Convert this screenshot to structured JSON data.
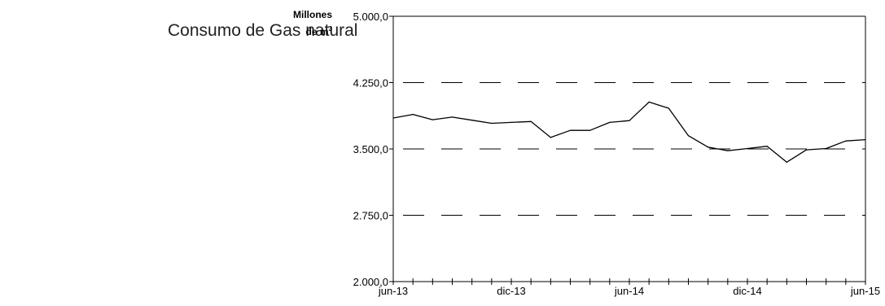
{
  "title": "Consumo de Gas natural",
  "chart_data": {
    "type": "line",
    "ylabel_line1": "Millones",
    "ylabel_line2": "de m",
    "ylabel_sup": "3",
    "ylim": [
      2000,
      5000
    ],
    "yticks": [
      2000,
      2750,
      3500,
      4250,
      5000
    ],
    "ytick_labels": [
      "2.000,0",
      "2.750,0",
      "3.500,0",
      "4.250,0",
      "5.000,0"
    ],
    "xtick_labels": [
      "jun-13",
      "dic-13",
      "jun-14",
      "dic-14",
      "jun-15"
    ],
    "xtick_label_indices": [
      0,
      6,
      12,
      18,
      24
    ],
    "grid": "dashed horizontal",
    "x": [
      "jun-13",
      "jul-13",
      "ago-13",
      "sep-13",
      "oct-13",
      "nov-13",
      "dic-13",
      "ene-14",
      "feb-14",
      "mar-14",
      "abr-14",
      "may-14",
      "jun-14",
      "jul-14",
      "ago-14",
      "sep-14",
      "oct-14",
      "nov-14",
      "dic-14",
      "ene-15",
      "feb-15",
      "mar-15",
      "abr-15",
      "may-15",
      "jun-15"
    ],
    "series": [
      {
        "values": [
          3850,
          3890,
          3830,
          3860,
          3825,
          3790,
          3800,
          3810,
          3630,
          3710,
          3710,
          3800,
          3820,
          4030,
          3960,
          3650,
          3520,
          3480,
          3505,
          3530,
          3350,
          3490,
          3505,
          3590,
          3605
        ]
      }
    ],
    "line_color": "#000000",
    "grid_color": "#000000"
  }
}
